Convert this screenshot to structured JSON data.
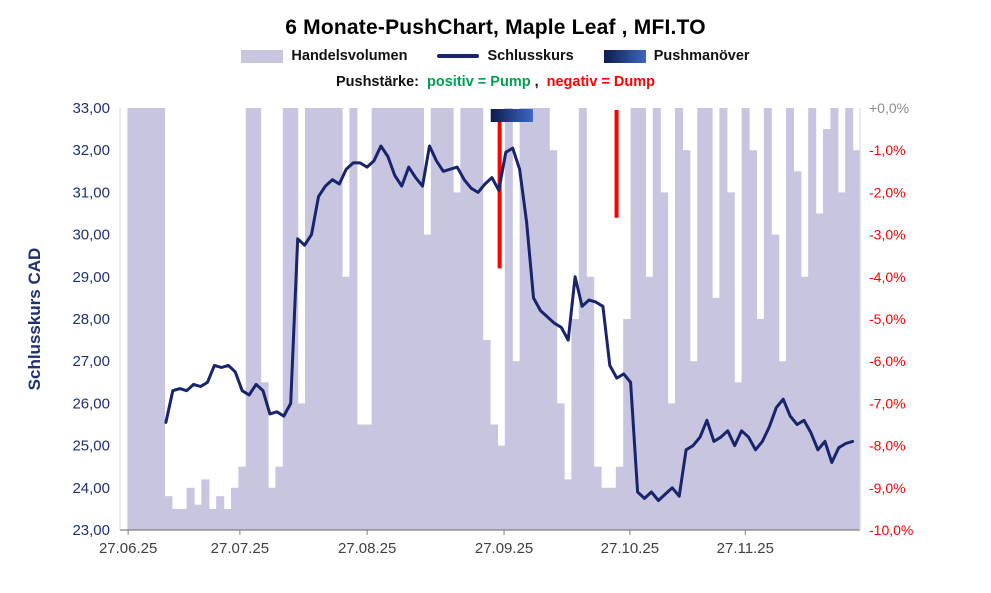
{
  "title": "6 Monate-PushChart, Maple Leaf , MFI.TO",
  "legend": {
    "volume_label": "Handelsvolumen",
    "close_label": "Schlusskurs",
    "push_label": "Pushmanöver"
  },
  "subtitle": {
    "prefix": "Pushstärke:",
    "positive": "positiv = Pump",
    "separator": ",",
    "negative": "negativ = Dump"
  },
  "colors": {
    "volume": "#c7c5df",
    "close_line": "#18246b",
    "push_negative": "#ff0000",
    "positive_text": "#00a050",
    "negative_text": "#ff0000",
    "push_band_start": "#0f1b4e",
    "push_band_end": "#3c68c4",
    "left_axis_text": "#1f3170",
    "right_axis_text": "#ff0000",
    "right_axis_zero": "#8c8c8c",
    "x_axis_text": "#3f3f3f",
    "axis_line": "#808080",
    "frame_line": "#d9d9d9"
  },
  "chart_data": {
    "type": "line+bar",
    "title": "6 Monate-PushChart, Maple Leaf , MFI.TO",
    "legend_entries": [
      "Handelsvolumen",
      "Schlusskurs",
      "Pushmanöver"
    ],
    "left_axis": {
      "label": "Schlusskurs CAD",
      "min": 23,
      "max": 33,
      "tick_labels": [
        "33,00",
        "32,00",
        "31,00",
        "30,00",
        "29,00",
        "28,00",
        "27,00",
        "26,00",
        "25,00",
        "24,00",
        "23,00"
      ]
    },
    "right_axis": {
      "min_pct": -10,
      "max_pct": 0,
      "tick_labels": [
        "+0,0%",
        "-1,0%",
        "-2,0%",
        "-3,0%",
        "-4,0%",
        "-5,0%",
        "-6,0%",
        "-7,0%",
        "-8,0%",
        "-9,0%",
        "-10,0%"
      ]
    },
    "x_axis": {
      "tick_labels": [
        "27.06.25",
        "27.07.25",
        "27.08.25",
        "27.09.25",
        "27.10.25",
        "27.11.25"
      ],
      "tick_pos": [
        0.011,
        0.162,
        0.334,
        0.519,
        0.689,
        0.845
      ]
    },
    "close": {
      "name": "Schlusskurs",
      "x_start": 0.062,
      "x_end": 0.99,
      "values": [
        25.55,
        26.3,
        26.35,
        26.3,
        26.45,
        26.4,
        26.5,
        26.9,
        26.85,
        26.9,
        26.75,
        26.3,
        26.2,
        26.45,
        26.3,
        25.75,
        25.8,
        25.7,
        26.0,
        29.9,
        29.75,
        30.0,
        30.9,
        31.15,
        31.3,
        31.2,
        31.55,
        31.7,
        31.7,
        31.6,
        31.75,
        32.1,
        31.85,
        31.4,
        31.15,
        31.6,
        31.35,
        31.15,
        32.1,
        31.75,
        31.5,
        31.55,
        31.6,
        31.3,
        31.1,
        31.0,
        31.2,
        31.35,
        31.05,
        31.95,
        32.05,
        31.55,
        30.3,
        28.5,
        28.2,
        28.05,
        27.9,
        27.8,
        27.5,
        29.0,
        28.3,
        28.45,
        28.4,
        28.3,
        26.9,
        26.6,
        26.7,
        26.5,
        23.9,
        23.75,
        23.9,
        23.7,
        23.85,
        24.0,
        23.8,
        24.9,
        25.0,
        25.2,
        25.6,
        25.1,
        25.2,
        25.35,
        25.0,
        25.35,
        25.2,
        24.9,
        25.1,
        25.45,
        25.9,
        26.1,
        25.7,
        25.5,
        25.6,
        25.3,
        24.9,
        25.1,
        24.6,
        24.95,
        25.05,
        25.1
      ]
    },
    "volume": {
      "name": "Handelsvolumen",
      "values": [
        0,
        1,
        1,
        1,
        1,
        1,
        0.08,
        0.05,
        0.05,
        0.1,
        0.06,
        0.12,
        0.05,
        0.08,
        0.05,
        0.1,
        0.15,
        1,
        1,
        0.35,
        0.1,
        0.15,
        1,
        1,
        0.3,
        1,
        1,
        1,
        1,
        1,
        0.6,
        1,
        0.25,
        0.25,
        1,
        1,
        1,
        1,
        1,
        1,
        1,
        0.7,
        1,
        1,
        1,
        0.8,
        1,
        1,
        1,
        0.45,
        0.25,
        0.2,
        1,
        0.4,
        1,
        1,
        1,
        1,
        0.9,
        0.3,
        0.12,
        0.5,
        1,
        0.6,
        0.15,
        0.1,
        0.1,
        0.15,
        0.5,
        1,
        1,
        0.6,
        1,
        0.8,
        0.3,
        1,
        0.9,
        0.4,
        1,
        1,
        0.55,
        1,
        0.8,
        0.35,
        1,
        0.9,
        0.5,
        1,
        0.7,
        0.4,
        1,
        0.85,
        0.6,
        1,
        0.75,
        0.95,
        1,
        0.8,
        1,
        0.9
      ]
    },
    "pushes": [
      {
        "x": 0.513,
        "pct": -3.8,
        "kind": "dump"
      },
      {
        "x": 0.671,
        "pct": -2.6,
        "kind": "dump"
      }
    ],
    "push_band": {
      "x0": 0.501,
      "x1": 0.558
    }
  }
}
